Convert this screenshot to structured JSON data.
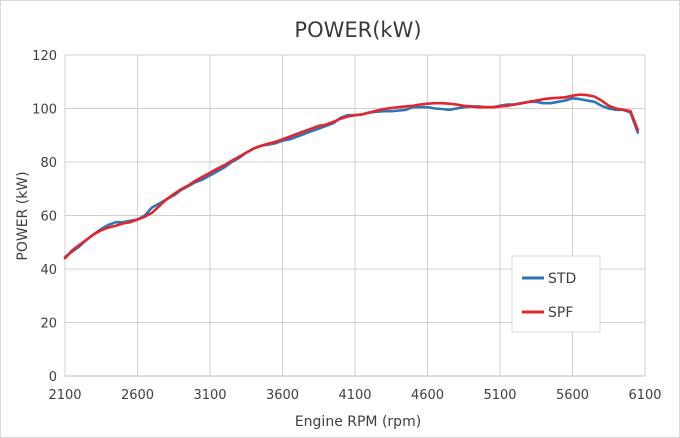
{
  "chart_data": {
    "type": "line",
    "title": "POWER(kW)",
    "xlabel": "Engine RPM (rpm)",
    "ylabel": "POWER (kW)",
    "xlim": [
      2100,
      6100
    ],
    "ylim": [
      0,
      120
    ],
    "xticks": [
      2100,
      2600,
      3100,
      3600,
      4100,
      4600,
      5100,
      5600,
      6100
    ],
    "yticks": [
      0,
      20,
      40,
      60,
      80,
      100,
      120
    ],
    "grid": true,
    "legend_position": "right-lower",
    "series": [
      {
        "name": "STD",
        "color": "#2e75b6",
        "x": [
          2100,
          2150,
          2200,
          2250,
          2300,
          2350,
          2400,
          2450,
          2500,
          2550,
          2600,
          2650,
          2700,
          2750,
          2800,
          2850,
          2900,
          2950,
          3000,
          3050,
          3100,
          3150,
          3200,
          3250,
          3300,
          3350,
          3400,
          3450,
          3500,
          3550,
          3600,
          3650,
          3700,
          3750,
          3800,
          3850,
          3900,
          3950,
          4000,
          4050,
          4100,
          4150,
          4200,
          4250,
          4300,
          4350,
          4400,
          4450,
          4500,
          4550,
          4600,
          4650,
          4700,
          4750,
          4800,
          4850,
          4900,
          4950,
          5000,
          5050,
          5100,
          5150,
          5200,
          5250,
          5300,
          5350,
          5400,
          5450,
          5500,
          5550,
          5600,
          5650,
          5700,
          5750,
          5800,
          5850,
          5900,
          5950,
          6000,
          6050
        ],
        "values": [
          44.5,
          46.5,
          48.5,
          51,
          53,
          55,
          56.5,
          57.5,
          57.5,
          58,
          58.5,
          60,
          63,
          64.5,
          66,
          67.5,
          69.5,
          71,
          72.5,
          73.5,
          75,
          76.5,
          78,
          80,
          81.5,
          83.5,
          85,
          86,
          86.5,
          87,
          88,
          88.5,
          89.5,
          90.5,
          91.5,
          92.5,
          93.5,
          94.5,
          96.5,
          97.5,
          97.5,
          97.8,
          98.5,
          98.8,
          99,
          99,
          99.2,
          99.5,
          100.5,
          100.5,
          100.5,
          100,
          99.8,
          99.5,
          100,
          100.5,
          100.8,
          100.8,
          100.5,
          100.5,
          101,
          101.5,
          101.5,
          102,
          102.5,
          102.5,
          102,
          102,
          102.5,
          103,
          103.8,
          103.5,
          103,
          102.5,
          101,
          100,
          99.5,
          99.5,
          98.5,
          91
        ]
      },
      {
        "name": "SPF",
        "color": "#e0262e",
        "x": [
          2100,
          2150,
          2200,
          2250,
          2300,
          2350,
          2400,
          2450,
          2500,
          2550,
          2600,
          2650,
          2700,
          2750,
          2800,
          2850,
          2900,
          2950,
          3000,
          3050,
          3100,
          3150,
          3200,
          3250,
          3300,
          3350,
          3400,
          3450,
          3500,
          3550,
          3600,
          3650,
          3700,
          3750,
          3800,
          3850,
          3900,
          3950,
          4000,
          4050,
          4100,
          4150,
          4200,
          4250,
          4300,
          4350,
          4400,
          4450,
          4500,
          4550,
          4600,
          4650,
          4700,
          4750,
          4800,
          4850,
          4900,
          4950,
          5000,
          5050,
          5100,
          5150,
          5200,
          5250,
          5300,
          5350,
          5400,
          5450,
          5500,
          5550,
          5600,
          5650,
          5700,
          5750,
          5800,
          5850,
          5900,
          5950,
          6000,
          6050
        ],
        "values": [
          44,
          47,
          49,
          51,
          53,
          54.5,
          55.5,
          56.2,
          57,
          57.5,
          58.5,
          59.5,
          61,
          63.5,
          66,
          68,
          69.8,
          71.2,
          73,
          74.5,
          76,
          77.5,
          78.8,
          80.5,
          82,
          83.5,
          85,
          86,
          86.8,
          87.5,
          88.5,
          89.5,
          90.5,
          91.5,
          92.5,
          93.5,
          94,
          95,
          96.2,
          97,
          97.5,
          97.8,
          98.5,
          99.2,
          99.8,
          100.2,
          100.5,
          100.8,
          101,
          101.5,
          101.8,
          102,
          102,
          101.8,
          101.5,
          101,
          100.8,
          100.5,
          100.5,
          100.5,
          100.8,
          101,
          101.5,
          102,
          102.5,
          103,
          103.5,
          103.8,
          104,
          104.2,
          104.8,
          105.2,
          105,
          104.5,
          103,
          101,
          100,
          99.5,
          99,
          92
        ]
      }
    ]
  }
}
